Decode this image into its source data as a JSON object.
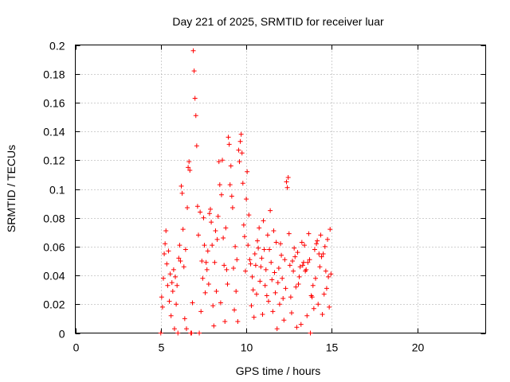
{
  "chart_data": {
    "type": "scatter",
    "title": "Day 221 of 2025, SRMTID for receiver luar",
    "xlabel": "GPS time / hours",
    "ylabel": "SRMTID / TECUs",
    "xlim": [
      0,
      24
    ],
    "ylim": [
      0,
      0.2
    ],
    "xticks": [
      0,
      5,
      10,
      15,
      20
    ],
    "xtick_labels": [
      "0",
      "5",
      "10",
      "15",
      "20"
    ],
    "yticks": [
      0,
      0.02,
      0.04,
      0.06,
      0.08,
      0.1,
      0.12,
      0.14,
      0.16,
      0.18,
      0.2
    ],
    "ytick_labels": [
      "0",
      "0.02",
      "0.04",
      "0.06",
      "0.08",
      "0.1",
      "0.12",
      "0.14",
      "0.16",
      "0.18",
      "0.2"
    ],
    "grid": true,
    "marker": "+",
    "marker_color": "#ff0000",
    "x_step_hours": 0.05,
    "x_start": 5.0,
    "series": [
      {
        "values": [
          0.0,
          0.025,
          0.018,
          0.038,
          0.055,
          0.062,
          0.071,
          0.048,
          0.033,
          0.057,
          0.022,
          0.041,
          0.012,
          0.035,
          0.029,
          0.044,
          0.003,
          0.039,
          0.02,
          0.033,
          0.0,
          0.052,
          0.061,
          0.05,
          0.102,
          0.097,
          0.072,
          0.046,
          0.01,
          0.058,
          0.003,
          0.087,
          0.115,
          0.119,
          0.113,
          0.0,
          0.0,
          0.021,
          0.196,
          0.182,
          0.163,
          0.151,
          0.13,
          0.088,
          0.068,
          0.0,
          0.084,
          0.015,
          0.05,
          0.038,
          0.08,
          0.061,
          0.028,
          0.049,
          0.044,
          0.057,
          0.034,
          0.083,
          0.086,
          0.077,
          0.061,
          0.019,
          0.005,
          0.049,
          0.071,
          0.029,
          0.065,
          0.081,
          0.119,
          0.103,
          0.021,
          0.096,
          0.12,
          0.066,
          0.047,
          0.008,
          0.073,
          0.044,
          0.034,
          0.136,
          0.131,
          0.103,
          0.116,
          0.095,
          0.087,
          0.045,
          0.016,
          0.06,
          0.029,
          0.051,
          0.008,
          0.127,
          0.119,
          0.133,
          0.138,
          0.125,
          0.104,
          0.075,
          0.067,
          0.043,
          0.093,
          0.112,
          0.061,
          0.082,
          0.051,
          0.048,
          0.019,
          0.039,
          0.03,
          0.011,
          0.055,
          0.047,
          0.027,
          0.064,
          0.059,
          0.073,
          0.036,
          0.046,
          0.052,
          0.013,
          0.078,
          0.058,
          0.033,
          0.044,
          0.026,
          0.068,
          0.022,
          0.058,
          0.085,
          0.049,
          0.037,
          0.015,
          0.071,
          0.042,
          0.028,
          0.063,
          0.003,
          0.035,
          0.045,
          0.02,
          0.062,
          0.054,
          0.038,
          0.024,
          0.009,
          0.051,
          0.031,
          0.105,
          0.101,
          0.108,
          0.069,
          0.047,
          0.025,
          0.014,
          0.05,
          0.043,
          0.059,
          0.053,
          0.032,
          0.004,
          0.056,
          0.034,
          0.039,
          0.046,
          0.006,
          0.063,
          0.047,
          0.049,
          0.061,
          0.043,
          0.044,
          0.012,
          0.049,
          0.069,
          0.051,
          0.0,
          0.026,
          0.025,
          0.033,
          0.017,
          0.058,
          0.038,
          0.062,
          0.064,
          0.02,
          0.055,
          0.046,
          0.068,
          0.053,
          0.013,
          0.055,
          0.027,
          0.06,
          0.043,
          0.031,
          0.065,
          0.039,
          0.018,
          0.072,
          0.041
        ]
      }
    ]
  }
}
